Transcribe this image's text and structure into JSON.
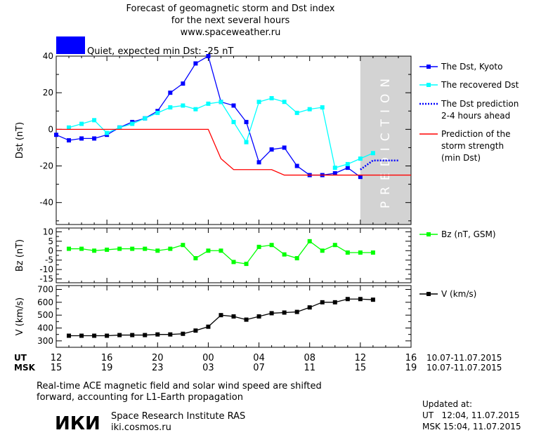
{
  "header": {
    "title_lines": [
      "Forecast of geomagnetic storm and Dst index",
      "for the next several hours",
      "www.spaceweather.ru"
    ],
    "status_text": "Quiet, expected min Dst: -25 nT",
    "status_color": "#0000ff"
  },
  "colors": {
    "dst_kyoto": "#0000ff",
    "dst_recovered": "#00ffff",
    "dst_prediction": "#0000ff",
    "storm_strength": "#ff0000",
    "bz": "#00ff00",
    "v": "#000000",
    "prediction_band": "#d3d3d3"
  },
  "time_axis": {
    "ut_label": "UT",
    "msk_label": "MSK",
    "ut_ticks": [
      "12",
      "16",
      "20",
      "00",
      "04",
      "08",
      "12",
      "16"
    ],
    "msk_ticks": [
      "15",
      "19",
      "23",
      "03",
      "07",
      "11",
      "15",
      "19"
    ],
    "date_range": "10.07-11.07.2015"
  },
  "chart_data": [
    {
      "type": "line",
      "panel": "dst",
      "ylabel": "Dst (nT)",
      "ylim": [
        -52,
        40
      ],
      "yticks": [
        40,
        20,
        0,
        -20,
        -40
      ],
      "xlim": [
        0,
        28
      ],
      "x_unit": "hours from 12 UT 10.07.2015",
      "shaded_label": "PREDICTION",
      "shaded_range": [
        24,
        28
      ],
      "legend_position": "right",
      "series": [
        {
          "name": "The Dst, Kyoto",
          "color": "#0000ff",
          "marker": "square",
          "x": [
            0,
            1,
            2,
            3,
            4,
            5,
            6,
            7,
            8,
            9,
            10,
            11,
            12,
            13,
            14,
            15,
            16,
            17,
            18,
            19,
            20,
            21,
            22,
            23,
            24
          ],
          "y": [
            -3,
            -6,
            -5,
            -5,
            -3,
            1,
            4,
            6,
            10,
            20,
            25,
            36,
            40,
            15,
            13,
            4,
            -18,
            -11,
            -10,
            -20,
            -25,
            -25,
            -24,
            -21,
            -26
          ]
        },
        {
          "name": "The recovered Dst",
          "color": "#00ffff",
          "marker": "square",
          "x": [
            1,
            2,
            3,
            4,
            5,
            6,
            7,
            8,
            9,
            10,
            11,
            12,
            13,
            14,
            15,
            16,
            17,
            18,
            19,
            20,
            21,
            22,
            23,
            24,
            25
          ],
          "y": [
            1,
            3,
            5,
            -2,
            1,
            3,
            6,
            9,
            12,
            13,
            11,
            14,
            15,
            4,
            -7,
            15,
            17,
            15,
            9,
            11,
            12,
            -21,
            -19,
            -16,
            -13
          ]
        },
        {
          "name": "The Dst prediction 2-4 hours ahead",
          "color": "#0000ff",
          "dashed": true,
          "x": [
            24,
            25,
            26,
            27
          ],
          "y": [
            -22,
            -17,
            -17,
            -17
          ]
        },
        {
          "name": "Prediction of the storm strength (min Dst)",
          "color": "#ff0000",
          "x": [
            0,
            12,
            13,
            14,
            15,
            16,
            17,
            18,
            28
          ],
          "y": [
            0,
            0,
            -16,
            -22,
            -22,
            -22,
            -22,
            -25,
            -25
          ]
        }
      ]
    },
    {
      "type": "line",
      "panel": "bz",
      "ylabel": "Bz (nT)",
      "ylim": [
        -17,
        12
      ],
      "yticks": [
        10,
        5,
        0,
        -5,
        -10,
        -15
      ],
      "xlim": [
        0,
        28
      ],
      "series": [
        {
          "name": "Bz (nT, GSM)",
          "color": "#00ff00",
          "marker": "square",
          "x": [
            1,
            2,
            3,
            4,
            5,
            6,
            7,
            8,
            9,
            10,
            11,
            12,
            13,
            14,
            15,
            16,
            17,
            18,
            19,
            20,
            21,
            22,
            23,
            24,
            25
          ],
          "y": [
            1,
            1,
            0,
            0.5,
            1,
            1,
            1,
            0,
            1,
            3,
            -4,
            0,
            0,
            -6,
            -7,
            2,
            3,
            -2,
            -4,
            5,
            0,
            3,
            -1,
            -1,
            -1
          ]
        }
      ]
    },
    {
      "type": "line",
      "panel": "v",
      "ylabel": "V (km/s)",
      "ylim": [
        250,
        730
      ],
      "yticks": [
        700,
        600,
        500,
        400,
        300
      ],
      "xlim": [
        0,
        28
      ],
      "series": [
        {
          "name": "V (km/s)",
          "color": "#000000",
          "marker": "square",
          "x": [
            1,
            2,
            3,
            4,
            5,
            6,
            7,
            8,
            9,
            10,
            11,
            12,
            13,
            14,
            15,
            16,
            17,
            18,
            19,
            20,
            21,
            22,
            23,
            24,
            25
          ],
          "y": [
            340,
            340,
            340,
            340,
            345,
            345,
            345,
            350,
            350,
            355,
            380,
            410,
            500,
            490,
            465,
            490,
            515,
            520,
            525,
            560,
            600,
            600,
            625,
            625,
            620
          ]
        }
      ]
    }
  ],
  "footer": {
    "note_lines": [
      "Real-time ACE magnetic field and solar wind speed are shifted",
      "forward, accounting for L1-Earth propagation"
    ],
    "logo_text": "ИКИ",
    "institute": "Space Research Institute RAS",
    "site": "iki.cosmos.ru",
    "updated_label": "Updated at:",
    "updated_ut": "UT   12:04, 11.07.2015",
    "updated_msk": "MSK 15:04, 11.07.2015"
  }
}
